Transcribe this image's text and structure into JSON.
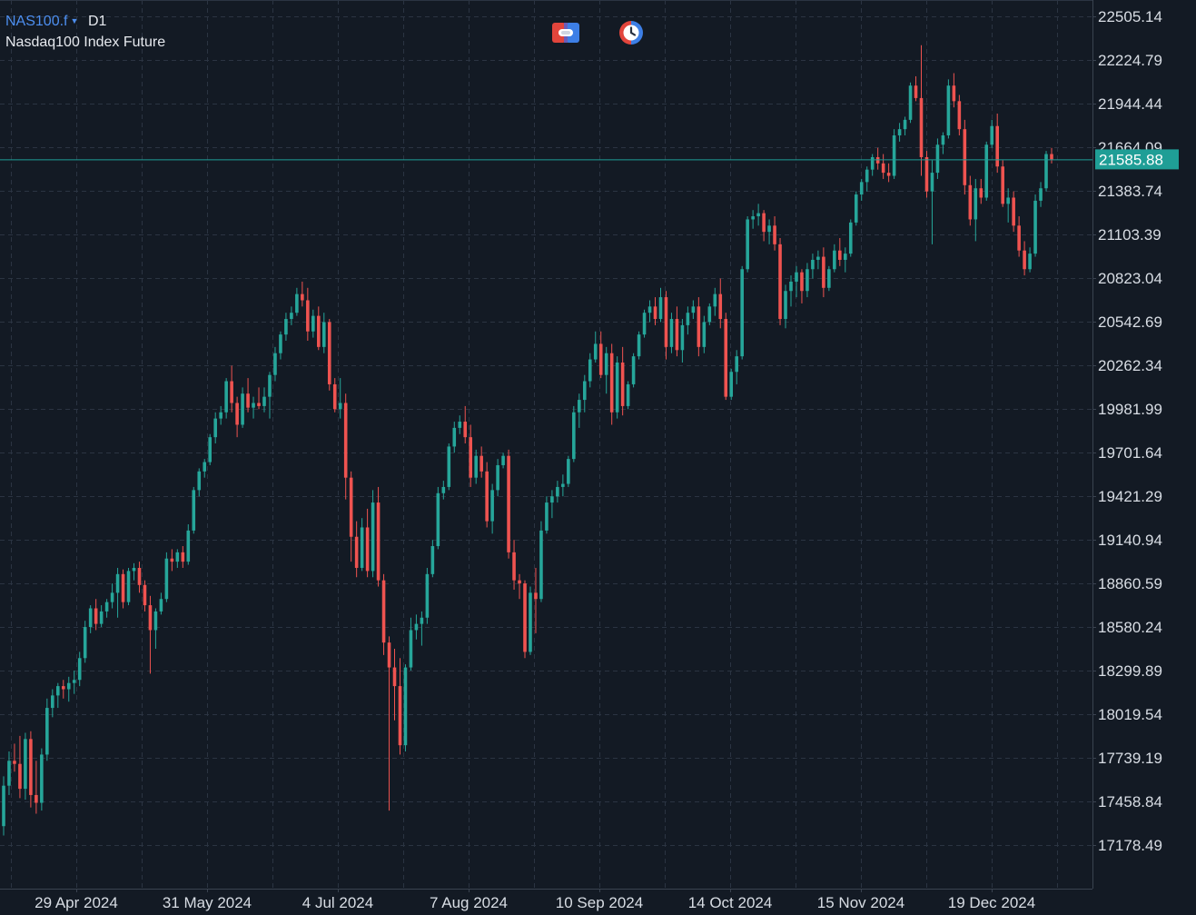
{
  "header": {
    "symbol": "NAS100.f",
    "timeframe": "D1",
    "description": "Nasdaq100 Index Future"
  },
  "toolbar": {
    "one_click_icon": "one-click-trading-icon",
    "history_icon": "history-clock-icon"
  },
  "colors": {
    "background": "#131a24",
    "grid": "#2b3442",
    "up": "#26a69a",
    "down": "#ef5350",
    "price_line": "#1f9e96",
    "axis_text": "#d8dde4",
    "accent": "#4d8ff0"
  },
  "chart_data": {
    "type": "candlestick",
    "y_ticks": [
      "22505.14",
      "22224.79",
      "21944.44",
      "21664.09",
      "21383.74",
      "21103.39",
      "20823.04",
      "20542.69",
      "20262.34",
      "19981.99",
      "19701.64",
      "19421.29",
      "19140.94",
      "18860.59",
      "18580.24",
      "18299.89",
      "18019.54",
      "17739.19",
      "17458.84",
      "17178.49"
    ],
    "ylim": [
      17178.49,
      22505.14
    ],
    "x_ticks": [
      "29 Apr 2024",
      "31 May 2024",
      "4 Jul 2024",
      "7 Aug 2024",
      "10 Sep 2024",
      "14 Oct 2024",
      "15 Nov 2024",
      "19 Dec 2024"
    ],
    "current_price": "21585.88",
    "grid": true,
    "candles": [
      [
        17300,
        17620,
        17240,
        17560
      ],
      [
        17560,
        17780,
        17500,
        17720
      ],
      [
        17720,
        17830,
        17650,
        17700
      ],
      [
        17700,
        17880,
        17480,
        17540
      ],
      [
        17540,
        17900,
        17470,
        17860
      ],
      [
        17860,
        17910,
        17420,
        17500
      ],
      [
        17500,
        17720,
        17380,
        17450
      ],
      [
        17450,
        17800,
        17400,
        17760
      ],
      [
        17760,
        18120,
        17720,
        18060
      ],
      [
        18060,
        18180,
        18000,
        18140
      ],
      [
        18140,
        18220,
        18060,
        18200
      ],
      [
        18200,
        18240,
        18120,
        18180
      ],
      [
        18180,
        18260,
        18100,
        18220
      ],
      [
        18220,
        18300,
        18150,
        18240
      ],
      [
        18240,
        18420,
        18200,
        18380
      ],
      [
        18380,
        18620,
        18350,
        18580
      ],
      [
        18580,
        18720,
        18540,
        18700
      ],
      [
        18700,
        18760,
        18560,
        18600
      ],
      [
        18600,
        18720,
        18580,
        18680
      ],
      [
        18680,
        18760,
        18640,
        18740
      ],
      [
        18740,
        18860,
        18700,
        18800
      ],
      [
        18800,
        18960,
        18640,
        18920
      ],
      [
        18920,
        18950,
        18700,
        18740
      ],
      [
        18740,
        18960,
        18720,
        18940
      ],
      [
        18940,
        18990,
        18880,
        18960
      ],
      [
        18960,
        19000,
        18800,
        18850
      ],
      [
        18850,
        18880,
        18680,
        18720
      ],
      [
        18720,
        18780,
        18280,
        18560
      ],
      [
        18560,
        18700,
        18440,
        18680
      ],
      [
        18680,
        18800,
        18660,
        18760
      ],
      [
        18760,
        19060,
        18740,
        19020
      ],
      [
        19020,
        19080,
        18940,
        19000
      ],
      [
        19000,
        19080,
        18960,
        19060
      ],
      [
        19060,
        19100,
        18960,
        19000
      ],
      [
        19000,
        19240,
        18980,
        19200
      ],
      [
        19200,
        19480,
        19180,
        19460
      ],
      [
        19460,
        19600,
        19420,
        19580
      ],
      [
        19580,
        19660,
        19540,
        19640
      ],
      [
        19640,
        19820,
        19620,
        19800
      ],
      [
        19800,
        19960,
        19760,
        19920
      ],
      [
        19920,
        20000,
        19880,
        19960
      ],
      [
        19960,
        20180,
        19920,
        20160
      ],
      [
        20160,
        20260,
        19960,
        20020
      ],
      [
        20020,
        20060,
        19800,
        19880
      ],
      [
        19880,
        20120,
        19860,
        20080
      ],
      [
        20080,
        20180,
        19960,
        19990
      ],
      [
        19990,
        20060,
        19920,
        20020
      ],
      [
        20020,
        20120,
        19980,
        20000
      ],
      [
        20000,
        20120,
        19960,
        20060
      ],
      [
        20060,
        20220,
        19920,
        20200
      ],
      [
        20200,
        20380,
        20160,
        20340
      ],
      [
        20340,
        20480,
        20300,
        20460
      ],
      [
        20460,
        20600,
        20420,
        20560
      ],
      [
        20560,
        20640,
        20520,
        20600
      ],
      [
        20600,
        20760,
        20580,
        20720
      ],
      [
        20720,
        20800,
        20640,
        20680
      ],
      [
        20680,
        20760,
        20420,
        20480
      ],
      [
        20480,
        20620,
        20440,
        20580
      ],
      [
        20580,
        20640,
        20360,
        20380
      ],
      [
        20380,
        20600,
        20340,
        20540
      ],
      [
        20540,
        20560,
        20100,
        20140
      ],
      [
        20140,
        20180,
        19960,
        19980
      ],
      [
        19980,
        20180,
        19920,
        20020
      ],
      [
        20020,
        20080,
        19400,
        19540
      ],
      [
        19540,
        19580,
        19000,
        19160
      ],
      [
        19160,
        19260,
        18900,
        18960
      ],
      [
        18960,
        19280,
        18940,
        19220
      ],
      [
        19220,
        19340,
        18900,
        18940
      ],
      [
        18940,
        19460,
        18900,
        19380
      ],
      [
        19380,
        19480,
        18840,
        18880
      ],
      [
        18880,
        18920,
        18400,
        18480
      ],
      [
        18480,
        18520,
        17400,
        18320
      ],
      [
        18320,
        18440,
        17980,
        18200
      ],
      [
        18200,
        18380,
        17760,
        17820
      ],
      [
        17820,
        18340,
        17780,
        18320
      ],
      [
        18320,
        18640,
        18300,
        18560
      ],
      [
        18560,
        18660,
        18500,
        18600
      ],
      [
        18600,
        18680,
        18460,
        18640
      ],
      [
        18640,
        18960,
        18600,
        18920
      ],
      [
        18920,
        19140,
        18900,
        19100
      ],
      [
        19100,
        19480,
        19080,
        19440
      ],
      [
        19440,
        19520,
        19400,
        19480
      ],
      [
        19480,
        19760,
        19460,
        19740
      ],
      [
        19740,
        19900,
        19700,
        19860
      ],
      [
        19860,
        19940,
        19820,
        19900
      ],
      [
        19900,
        20000,
        19760,
        19800
      ],
      [
        19800,
        19880,
        19480,
        19540
      ],
      [
        19540,
        19720,
        19500,
        19680
      ],
      [
        19680,
        19740,
        19540,
        19580
      ],
      [
        19580,
        19640,
        19220,
        19260
      ],
      [
        19260,
        19500,
        19180,
        19460
      ],
      [
        19460,
        19660,
        19420,
        19620
      ],
      [
        19620,
        19700,
        19600,
        19680
      ],
      [
        19680,
        19720,
        19020,
        19060
      ],
      [
        19060,
        19140,
        18820,
        18880
      ],
      [
        18880,
        18920,
        18760,
        18860
      ],
      [
        18860,
        18880,
        18380,
        18420
      ],
      [
        18420,
        18840,
        18400,
        18800
      ],
      [
        18800,
        18960,
        18540,
        18760
      ],
      [
        18760,
        19260,
        18740,
        19200
      ],
      [
        19200,
        19420,
        19180,
        19380
      ],
      [
        19380,
        19460,
        19280,
        19420
      ],
      [
        19420,
        19520,
        19380,
        19480
      ],
      [
        19480,
        19560,
        19420,
        19500
      ],
      [
        19500,
        19680,
        19480,
        19660
      ],
      [
        19660,
        20000,
        19640,
        19960
      ],
      [
        19960,
        20080,
        19860,
        20040
      ],
      [
        20040,
        20200,
        19960,
        20160
      ],
      [
        20160,
        20340,
        20120,
        20300
      ],
      [
        20300,
        20480,
        20280,
        20400
      ],
      [
        20400,
        20480,
        20180,
        20200
      ],
      [
        20200,
        20380,
        20080,
        20340
      ],
      [
        20340,
        20400,
        19880,
        19960
      ],
      [
        19960,
        20320,
        19920,
        20280
      ],
      [
        20280,
        20380,
        19940,
        20000
      ],
      [
        20000,
        20160,
        19980,
        20140
      ],
      [
        20140,
        20340,
        20120,
        20320
      ],
      [
        20320,
        20480,
        20300,
        20460
      ],
      [
        20460,
        20620,
        20440,
        20600
      ],
      [
        20600,
        20680,
        20540,
        20640
      ],
      [
        20640,
        20700,
        20520,
        20560
      ],
      [
        20560,
        20760,
        20540,
        20700
      ],
      [
        20700,
        20740,
        20300,
        20380
      ],
      [
        20380,
        20600,
        20340,
        20560
      ],
      [
        20560,
        20640,
        20320,
        20360
      ],
      [
        20360,
        20560,
        20280,
        20520
      ],
      [
        20520,
        20640,
        20460,
        20600
      ],
      [
        20600,
        20680,
        20560,
        20640
      ],
      [
        20640,
        20700,
        20320,
        20380
      ],
      [
        20380,
        20580,
        20340,
        20540
      ],
      [
        20540,
        20660,
        20520,
        20640
      ],
      [
        20640,
        20760,
        20580,
        20720
      ],
      [
        20720,
        20820,
        20500,
        20560
      ],
      [
        20560,
        20600,
        20040,
        20060
      ],
      [
        20060,
        20240,
        20040,
        20220
      ],
      [
        20220,
        20360,
        20140,
        20320
      ],
      [
        20320,
        20900,
        20300,
        20880
      ],
      [
        20880,
        21220,
        20860,
        21200
      ],
      [
        21200,
        21260,
        21140,
        21220
      ],
      [
        21220,
        21300,
        21160,
        21240
      ],
      [
        21240,
        21260,
        21060,
        21120
      ],
      [
        21120,
        21200,
        21040,
        21160
      ],
      [
        21160,
        21220,
        21000,
        21040
      ],
      [
        21040,
        21080,
        20520,
        20560
      ],
      [
        20560,
        20780,
        20500,
        20740
      ],
      [
        20740,
        20840,
        20640,
        20800
      ],
      [
        20800,
        20900,
        20700,
        20860
      ],
      [
        20860,
        20880,
        20660,
        20740
      ],
      [
        20740,
        20920,
        20700,
        20880
      ],
      [
        20880,
        20980,
        20820,
        20940
      ],
      [
        20940,
        21000,
        20880,
        20960
      ],
      [
        20960,
        21020,
        20700,
        20760
      ],
      [
        20760,
        20900,
        20740,
        20880
      ],
      [
        20880,
        21040,
        20860,
        21000
      ],
      [
        21000,
        21080,
        20900,
        20940
      ],
      [
        20940,
        21020,
        20860,
        20980
      ],
      [
        20980,
        21200,
        20960,
        21180
      ],
      [
        21180,
        21380,
        21160,
        21360
      ],
      [
        21360,
        21460,
        21320,
        21440
      ],
      [
        21440,
        21540,
        21380,
        21520
      ],
      [
        21520,
        21620,
        21480,
        21600
      ],
      [
        21600,
        21660,
        21520,
        21560
      ],
      [
        21560,
        21620,
        21460,
        21500
      ],
      [
        21500,
        21560,
        21440,
        21480
      ],
      [
        21480,
        21780,
        21460,
        21740
      ],
      [
        21740,
        21820,
        21700,
        21780
      ],
      [
        21780,
        21860,
        21740,
        21840
      ],
      [
        21840,
        22080,
        21820,
        22060
      ],
      [
        22060,
        22120,
        21960,
        21980
      ],
      [
        21980,
        22320,
        21480,
        21600
      ],
      [
        21600,
        21640,
        21340,
        21380
      ],
      [
        21380,
        21580,
        21040,
        21500
      ],
      [
        21500,
        21720,
        21460,
        21680
      ],
      [
        21680,
        21760,
        21620,
        21740
      ],
      [
        21740,
        22100,
        21720,
        22060
      ],
      [
        22060,
        22140,
        21920,
        21960
      ],
      [
        21960,
        22000,
        21740,
        21780
      ],
      [
        21780,
        21840,
        21360,
        21420
      ],
      [
        21420,
        21480,
        21160,
        21200
      ],
      [
        21200,
        21460,
        21060,
        21400
      ],
      [
        21400,
        21460,
        21300,
        21340
      ],
      [
        21340,
        21700,
        21320,
        21680
      ],
      [
        21680,
        21840,
        21660,
        21800
      ],
      [
        21800,
        21880,
        21500,
        21540
      ],
      [
        21540,
        21580,
        21280,
        21300
      ],
      [
        21300,
        21400,
        21180,
        21340
      ],
      [
        21340,
        21380,
        21120,
        21160
      ],
      [
        21160,
        21220,
        20960,
        21000
      ],
      [
        21000,
        21060,
        20840,
        20880
      ],
      [
        20880,
        21020,
        20860,
        20980
      ],
      [
        20980,
        21360,
        20960,
        21320
      ],
      [
        21320,
        21440,
        21280,
        21400
      ],
      [
        21400,
        21640,
        21380,
        21620
      ],
      [
        21620,
        21660,
        21560,
        21586
      ]
    ]
  }
}
